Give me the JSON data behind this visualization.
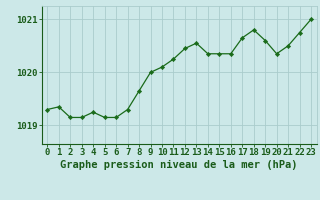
{
  "x": [
    0,
    1,
    2,
    3,
    4,
    5,
    6,
    7,
    8,
    9,
    10,
    11,
    12,
    13,
    14,
    15,
    16,
    17,
    18,
    19,
    20,
    21,
    22,
    23
  ],
  "y": [
    1019.3,
    1019.35,
    1019.15,
    1019.15,
    1019.25,
    1019.15,
    1019.15,
    1019.3,
    1019.65,
    1020.0,
    1020.1,
    1020.25,
    1020.45,
    1020.55,
    1020.35,
    1020.35,
    1020.35,
    1020.65,
    1020.8,
    1020.6,
    1020.35,
    1020.5,
    1020.75,
    1021.0
  ],
  "line_color": "#1a6b1a",
  "marker_color": "#1a6b1a",
  "bg_color": "#cce8e8",
  "grid_color": "#aacccc",
  "axis_color": "#1a5c1a",
  "title": "Graphe pression niveau de la mer (hPa)",
  "xlabel_ticks": [
    "0",
    "1",
    "2",
    "3",
    "4",
    "5",
    "6",
    "7",
    "8",
    "9",
    "10",
    "11",
    "12",
    "13",
    "14",
    "15",
    "16",
    "17",
    "18",
    "19",
    "20",
    "21",
    "22",
    "23"
  ],
  "yticks": [
    1019,
    1020,
    1021
  ],
  "ylim": [
    1018.65,
    1021.25
  ],
  "xlim": [
    -0.5,
    23.5
  ],
  "title_fontsize": 7.5,
  "tick_fontsize": 6.5
}
